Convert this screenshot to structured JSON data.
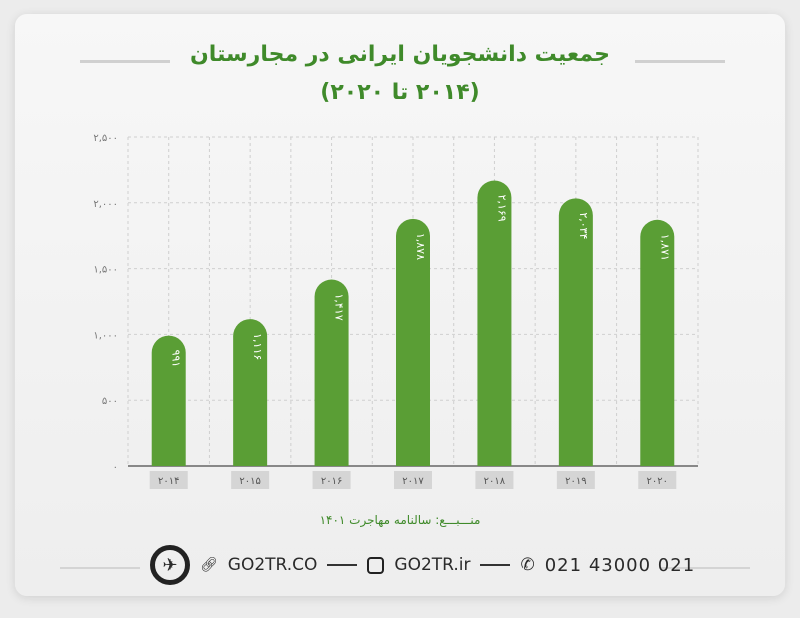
{
  "chart_data": {
    "type": "bar",
    "title": "جمعیت دانشجویان ایرانی در مجارستان",
    "subtitle": "(۲۰۱۴ تا ۲۰۲۰)",
    "categories": [
      "۲۰۱۴",
      "۲۰۱۵",
      "۲۰۱۶",
      "۲۰۱۷",
      "۲۰۱۸",
      "۲۰۱۹",
      "۲۰۲۰"
    ],
    "x": [
      2014,
      2015,
      2016,
      2017,
      2018,
      2019,
      2020
    ],
    "values": [
      991,
      1116,
      1417,
      1878,
      2169,
      2034,
      1871
    ],
    "data_labels": [
      "۹۹۱",
      "۱,۱۱۶",
      "۱,۴۱۷",
      "۱,۸۷۸",
      "۲,۱۶۹",
      "۲,۰۳۴",
      "۱,۸۷۱"
    ],
    "yticks": [
      0,
      500,
      1000,
      1500,
      2000,
      2500
    ],
    "ytick_labels": [
      "۰",
      "۵۰۰",
      "۱,۰۰۰",
      "۱,۵۰۰",
      "۲,۰۰۰",
      "۲,۵۰۰"
    ],
    "ylim": [
      0,
      2500
    ],
    "grid": true,
    "bar_color": "#5a9e35"
  },
  "source": "منـــبـــع: سالنامه مهاجرت ۱۴۰۱",
  "footer": {
    "website": "GO2TR.CO",
    "instagram": "GO2TR.ir",
    "phone": "021 43000 021"
  }
}
